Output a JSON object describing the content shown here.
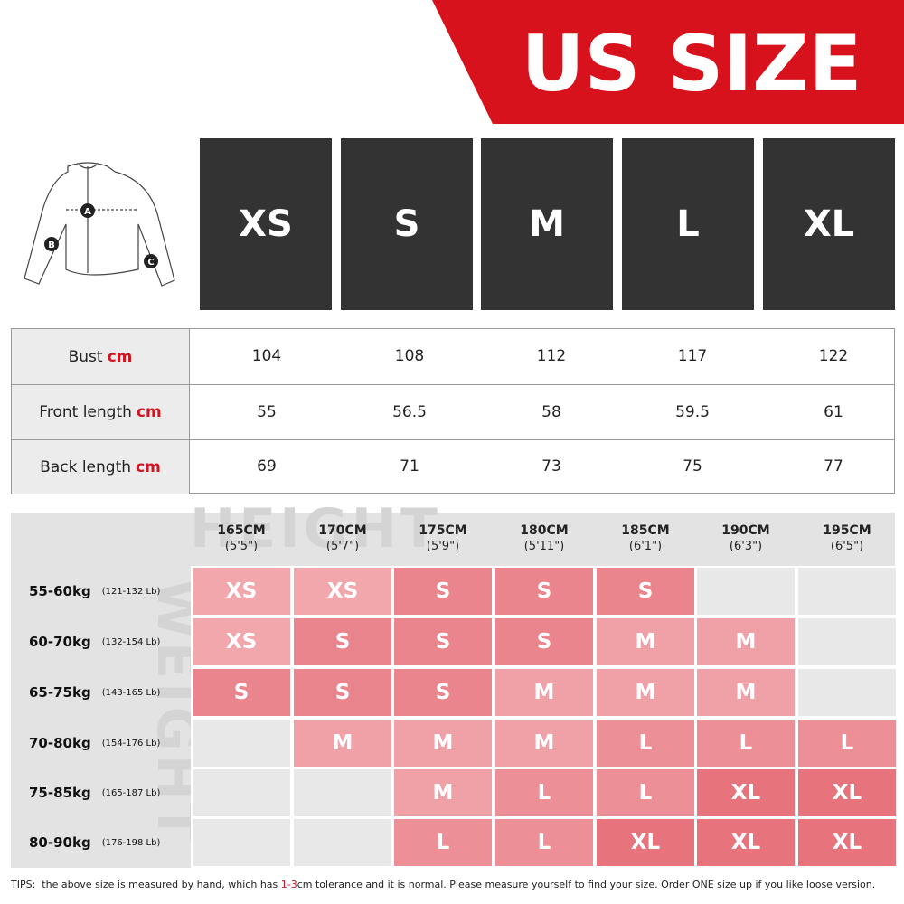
{
  "header": {
    "title": "US SIZE"
  },
  "diagram": {
    "labels": [
      "A",
      "B",
      "C"
    ]
  },
  "sizes": [
    "XS",
    "S",
    "M",
    "L",
    "XL"
  ],
  "measurements": {
    "rows": [
      {
        "label": "Bust",
        "unit": "cm",
        "values": [
          "104",
          "108",
          "112",
          "117",
          "122"
        ]
      },
      {
        "label": "Front length",
        "unit": "cm",
        "values": [
          "55",
          "56.5",
          "58",
          "59.5",
          "61"
        ]
      },
      {
        "label": "Back length",
        "unit": "cm",
        "values": [
          "69",
          "71",
          "73",
          "75",
          "77"
        ]
      }
    ]
  },
  "size_chart": {
    "watermark_x": "HEIGHT",
    "watermark_y": "WEIGHT",
    "heights": [
      {
        "cm": "165CM",
        "ft": "(5'5\")"
      },
      {
        "cm": "170CM",
        "ft": "(5'7\")"
      },
      {
        "cm": "175CM",
        "ft": "(5'9\")"
      },
      {
        "cm": "180CM",
        "ft": "(5'11\")"
      },
      {
        "cm": "185CM",
        "ft": "(6'1\")"
      },
      {
        "cm": "190CM",
        "ft": "(6'3\")"
      },
      {
        "cm": "195CM",
        "ft": "(6'5\")"
      }
    ],
    "weights": [
      {
        "kg": "55-60kg",
        "lb": "(121-132 Lb)"
      },
      {
        "kg": "60-70kg",
        "lb": "(132-154 Lb)"
      },
      {
        "kg": "65-75kg",
        "lb": "(143-165 Lb)"
      },
      {
        "kg": "70-80kg",
        "lb": "(154-176 Lb)"
      },
      {
        "kg": "75-85kg",
        "lb": "(165-187 Lb)"
      },
      {
        "kg": "80-90kg",
        "lb": "(176-198 Lb)"
      }
    ],
    "cells": [
      [
        "XS",
        "XS",
        "S",
        "S",
        "S",
        null,
        null
      ],
      [
        "XS",
        "S",
        "S",
        "S",
        "M",
        "M",
        null
      ],
      [
        "S",
        "S",
        "S",
        "M",
        "M",
        "M",
        null
      ],
      [
        null,
        "M",
        "M",
        "M",
        "L",
        "L",
        "L"
      ],
      [
        null,
        null,
        "M",
        "L",
        "L",
        "XL",
        "XL"
      ],
      [
        null,
        null,
        "L",
        "L",
        "XL",
        "XL",
        "XL"
      ]
    ],
    "colors": {
      "XS": "#f2a7ad",
      "S": "#eb858d",
      "M": "#f0a0a7",
      "L": "#ed8f96",
      "XL": "#e7737d"
    }
  },
  "tips": {
    "prefix": "TIPS:",
    "before": "the above size is measured by hand, which has ",
    "highlight": "1-3",
    "after": "cm tolerance and it is normal. Please measure yourself to find your size. Order ONE size up if you like loose version."
  }
}
